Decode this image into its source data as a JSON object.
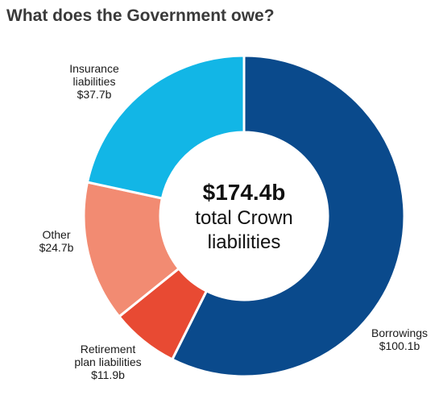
{
  "header": {
    "title": "What does the Government owe?"
  },
  "chart_data": {
    "type": "pie",
    "title": "What does the Government owe?",
    "unit": "$b",
    "total": {
      "value_label": "$174.4b",
      "caption_line1": "total Crown",
      "caption_line2": "liabilities"
    },
    "slices": [
      {
        "name": "Borrowings",
        "value": 100.1,
        "value_label": "$100.1b",
        "label_lines": [
          "Borrowings",
          "$100.1b"
        ],
        "color": "#0a4a8c"
      },
      {
        "name": "Retirement plan liabilities",
        "value": 11.9,
        "value_label": "$11.9b",
        "label_lines": [
          "Retirement",
          "plan liabilities",
          "$11.9b"
        ],
        "color": "#e84a33"
      },
      {
        "name": "Other",
        "value": 24.7,
        "value_label": "$24.7b",
        "label_lines": [
          "Other",
          "$24.7b"
        ],
        "color": "#f28b72"
      },
      {
        "name": "Insurance liabilities",
        "value": 37.7,
        "value_label": "$37.7b",
        "label_lines": [
          "Insurance",
          "liabilities",
          "$37.7b"
        ],
        "color": "#12b6e6"
      }
    ]
  }
}
